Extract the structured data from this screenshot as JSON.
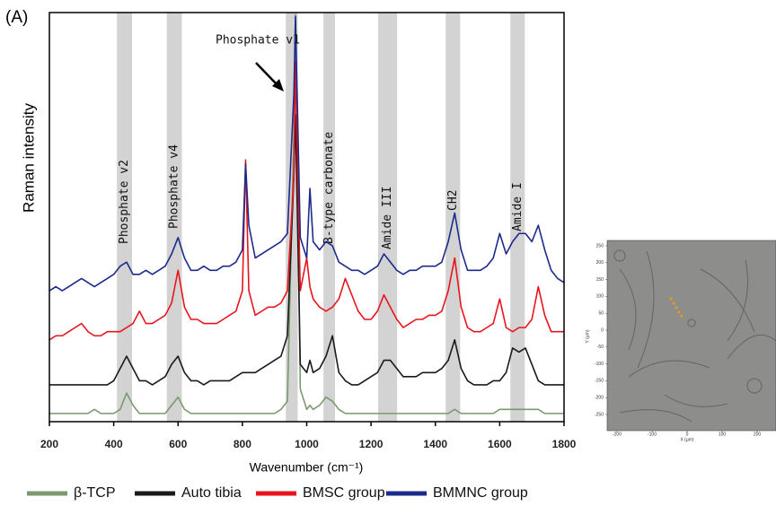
{
  "chart_data": {
    "type": "line",
    "panel_label": "(A)",
    "x_label": "Wavenumber (cm⁻¹)",
    "y_label": "Raman intensity",
    "annotation": "Phosphate v1",
    "xlim": [
      200,
      1800
    ],
    "xticks": [
      200,
      400,
      600,
      800,
      1000,
      1200,
      1400,
      1600,
      1800
    ],
    "ylim": [
      0,
      100
    ],
    "band_color": "#d3d3d3",
    "bands": [
      {
        "label": "Phosphate v2",
        "range": [
          410,
          457
        ]
      },
      {
        "label": "Phosphate v4",
        "range": [
          565,
          612
        ]
      },
      {
        "range": [
          935,
          972
        ]
      },
      {
        "label": "B-type carbonate",
        "range": [
          1052,
          1088
        ]
      },
      {
        "label": "Amide III",
        "range": [
          1222,
          1281
        ]
      },
      {
        "label": "CH2",
        "range": [
          1432,
          1477
        ]
      },
      {
        "label": "Amide I",
        "range": [
          1633,
          1678
        ]
      }
    ],
    "x": [
      200,
      220,
      240,
      260,
      280,
      300,
      320,
      340,
      360,
      380,
      400,
      420,
      440,
      460,
      480,
      500,
      520,
      540,
      560,
      580,
      600,
      620,
      640,
      660,
      680,
      700,
      720,
      740,
      760,
      780,
      800,
      810,
      820,
      840,
      860,
      880,
      900,
      920,
      940,
      960,
      965,
      980,
      1000,
      1010,
      1020,
      1040,
      1060,
      1080,
      1100,
      1120,
      1140,
      1160,
      1180,
      1200,
      1220,
      1240,
      1260,
      1280,
      1300,
      1320,
      1340,
      1360,
      1380,
      1400,
      1420,
      1440,
      1460,
      1480,
      1500,
      1520,
      1540,
      1560,
      1580,
      1600,
      1620,
      1640,
      1660,
      1680,
      1700,
      1720,
      1740,
      1760,
      1780,
      1800
    ],
    "series": [
      {
        "name": "β-TCP",
        "color": "#7a9a6e",
        "values": [
          2,
          2,
          2,
          2,
          2,
          2,
          2,
          3,
          2,
          2,
          2,
          3,
          7,
          4,
          2,
          2,
          2,
          2,
          2,
          4,
          6,
          3,
          2,
          2,
          2,
          2,
          2,
          2,
          2,
          2,
          2,
          2,
          2,
          2,
          2,
          2,
          2,
          3,
          5,
          70,
          99.5,
          8,
          3,
          4,
          3,
          4,
          6,
          5,
          3,
          2,
          2,
          2,
          2,
          2,
          2,
          2,
          2,
          2,
          2,
          2,
          2,
          2,
          2,
          2,
          2,
          2,
          3,
          2,
          2,
          2,
          2,
          2,
          2,
          3,
          3,
          3,
          3,
          3,
          3,
          3,
          2,
          2,
          2,
          2
        ]
      },
      {
        "name": "Auto tibia",
        "color": "#1a1a1a",
        "values": [
          9,
          9,
          9,
          9,
          9,
          9,
          9,
          9,
          9,
          9,
          10,
          13,
          16,
          13,
          10,
          10,
          9,
          10,
          11,
          14,
          16,
          12,
          10,
          10,
          9,
          10,
          10,
          10,
          10,
          11,
          12,
          12,
          12,
          12,
          13,
          14,
          15,
          16,
          21,
          60,
          75,
          14,
          12,
          15,
          12,
          13,
          16,
          21,
          12,
          10,
          9,
          9,
          10,
          11,
          12,
          15,
          15,
          13,
          11,
          11,
          11,
          12,
          12,
          12,
          13,
          15,
          20,
          13,
          10,
          9,
          9,
          9,
          10,
          10,
          12,
          18,
          17,
          18,
          14,
          10,
          9,
          9,
          9,
          9
        ]
      },
      {
        "name": "BMSC group",
        "color": "#e8141c",
        "values": [
          20,
          21,
          21,
          22,
          23,
          24,
          22,
          21,
          21,
          22,
          22,
          22,
          23,
          24,
          27,
          24,
          24,
          25,
          26,
          29,
          37,
          28,
          25,
          25,
          24,
          24,
          24,
          25,
          26,
          27,
          32,
          64,
          32,
          26,
          27,
          28,
          28,
          29,
          32,
          60,
          88,
          32,
          40,
          33,
          30,
          28,
          27,
          28,
          30,
          35,
          31,
          27,
          25,
          25,
          27,
          31,
          28,
          25,
          23,
          24,
          25,
          25,
          26,
          26,
          27,
          32,
          40,
          28,
          23,
          22,
          22,
          23,
          24,
          30,
          23,
          22,
          23,
          23,
          25,
          33,
          26,
          22,
          22,
          22
        ]
      },
      {
        "name": "BMMNC group",
        "color": "#1c2a8c",
        "values": [
          32,
          33,
          32,
          33,
          34,
          35,
          34,
          33,
          34,
          35,
          36,
          38,
          39,
          36,
          36,
          37,
          36,
          37,
          38,
          41,
          45,
          40,
          37,
          37,
          38,
          37,
          37,
          38,
          38,
          39,
          42,
          63,
          48,
          40,
          41,
          42,
          43,
          44,
          46,
          80,
          99,
          45,
          40,
          57,
          44,
          42,
          44,
          43,
          39,
          38,
          37,
          37,
          36,
          37,
          38,
          41,
          39,
          37,
          36,
          37,
          37,
          38,
          38,
          38,
          39,
          44,
          51,
          42,
          37,
          37,
          37,
          38,
          40,
          46,
          41,
          44,
          46,
          46,
          44,
          48,
          42,
          37,
          35,
          34
        ]
      }
    ]
  },
  "inset": {
    "y_label": "Y (µm)",
    "x_label": "X (µm)",
    "yticks": [
      250,
      200,
      150,
      100,
      50,
      0,
      -50,
      -100,
      -150,
      -200,
      -250
    ],
    "xticks": [
      -200,
      -100,
      0,
      100,
      200
    ]
  }
}
